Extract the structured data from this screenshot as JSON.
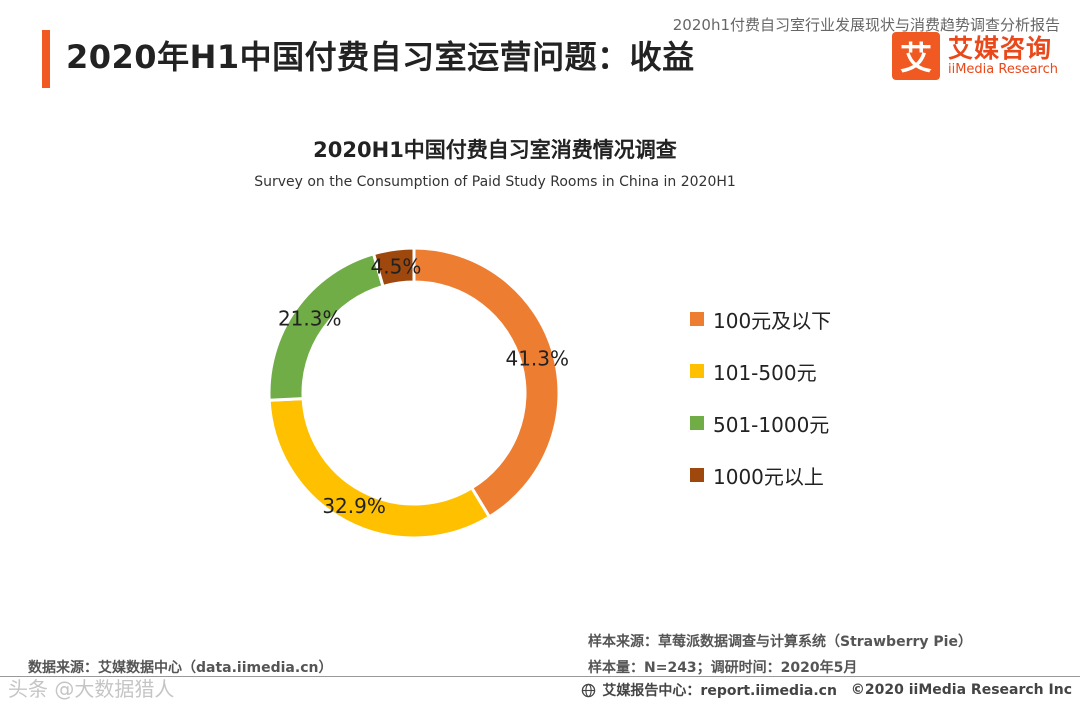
{
  "header": {
    "report_name": "2020h1付费自习室行业发展现状与消费趋势调查分析报告",
    "page_title": "2020年H1中国付费自习室运营问题：收益",
    "logo_mark": "艾",
    "logo_cn": "艾媒咨询",
    "logo_en": "iiMedia Research"
  },
  "chart_data": {
    "type": "pie",
    "style": "donut",
    "title": "2020H1中国付费自习室消费情况调查",
    "subtitle": "Survey on the Consumption of Paid Study Rooms in China in 2020H1",
    "categories": [
      "100元及以下",
      "101-500元",
      "501-1000元",
      "1000元以上"
    ],
    "values": [
      41.3,
      32.9,
      21.3,
      4.5
    ],
    "labels": [
      "41.3%",
      "32.9%",
      "21.3%",
      "4.5%"
    ],
    "colors": [
      "#ed7d31",
      "#ffc000",
      "#70ad47",
      "#9e480e"
    ],
    "legend_position": "right"
  },
  "footer": {
    "data_source": "数据来源：艾媒数据中心（data.iimedia.cn）",
    "sample_source": "样本来源：草莓派数据调查与计算系统（Strawberry Pie）",
    "sample_size": "样本量：N=243；调研时间：2020年5月",
    "report_center": "艾媒报告中心：report.iimedia.cn",
    "copyright": "©2020  iiMedia Research  Inc"
  },
  "watermark": "头条 @大数据猎人"
}
